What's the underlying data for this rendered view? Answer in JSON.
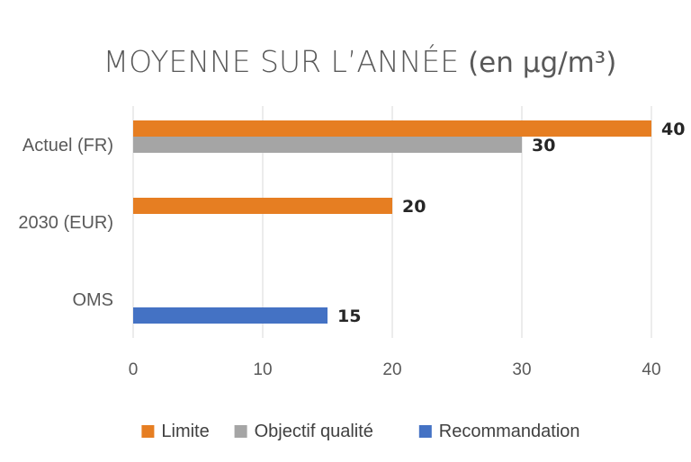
{
  "chart_data": {
    "type": "bar",
    "orientation": "horizontal",
    "title": "MOYENNE SUR L’ANNÉE",
    "title_unit": "(en µg/m³)",
    "categories": [
      "Actuel (FR)",
      "2030 (EUR)",
      "OMS"
    ],
    "series": [
      {
        "name": "Limite",
        "color": "#E67E22",
        "values": [
          40,
          20,
          null
        ]
      },
      {
        "name": "Objectif qualité",
        "color": "#A5A5A5",
        "values": [
          30,
          null,
          null
        ]
      },
      {
        "name": "Recommandation",
        "color": "#4472C4",
        "values": [
          null,
          null,
          15
        ]
      }
    ],
    "xlim": [
      0,
      40
    ],
    "xticks": [
      0,
      10,
      20,
      30,
      40
    ],
    "grid": "vertical",
    "legend": "bottom",
    "data_labels": true
  }
}
